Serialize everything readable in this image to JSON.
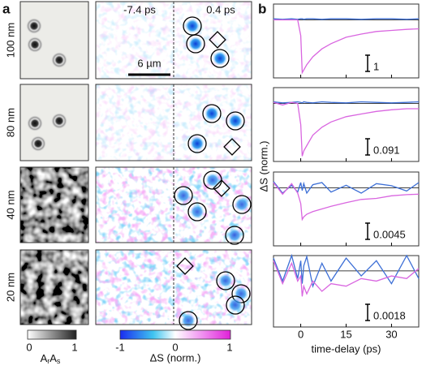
{
  "figure": {
    "panel_a": {
      "label": "a",
      "rows": [
        "100 nm",
        "80 nm",
        "40 nm",
        "20 nm"
      ],
      "time_labels": [
        "-7.4 ps",
        "0.4 ps"
      ],
      "scale_bar": "6 µm",
      "gray_colorbar": {
        "ticks": [
          "0",
          "1"
        ],
        "title": {
          "base1": "A",
          "sub1": "r",
          "base2": "A",
          "sub2": "s"
        }
      },
      "ds_colorbar": {
        "ticks": [
          "-1",
          "0",
          "1"
        ],
        "title": "ΔS (norm.)"
      }
    },
    "panel_b": {
      "label": "b",
      "y_label": "ΔS (norm.)",
      "x_label": "time-delay (ps)",
      "xlim": [
        -9,
        39
      ],
      "xticks": [
        0,
        15,
        30
      ],
      "ylim": [
        -1.1,
        0.3
      ],
      "baseline": 0,
      "signal_color": "#d966e0",
      "reference_color": "#3d6fd6",
      "x": [
        -9,
        -6,
        -3,
        -1,
        0,
        0.5,
        1,
        2,
        4,
        7,
        10,
        15,
        20,
        25,
        30,
        35,
        39
      ],
      "plots": [
        {
          "scale": "1",
          "signal": [
            0,
            0,
            0,
            0,
            -0.3,
            -1.0,
            -0.95,
            -0.85,
            -0.7,
            -0.55,
            -0.45,
            -0.33,
            -0.27,
            -0.22,
            -0.2,
            -0.18,
            -0.17
          ],
          "reference": [
            0.02,
            0.01,
            0.02,
            0.01,
            0.02,
            0.02,
            0.01,
            0.02,
            0.02,
            0.01,
            0.02,
            0.02,
            0.01,
            0.02,
            0.02,
            0.01,
            0.02
          ]
        },
        {
          "scale": "0.091",
          "signal": [
            0.02,
            -0.03,
            0.02,
            0,
            -0.4,
            -1.0,
            -0.9,
            -0.8,
            -0.6,
            -0.45,
            -0.35,
            -0.25,
            -0.2,
            -0.15,
            -0.12,
            -0.1,
            -0.1
          ],
          "reference": [
            0.03,
            0.01,
            0.02,
            0.03,
            0.02,
            0.01,
            0.03,
            0.02,
            0.01,
            0.03,
            0.02,
            0.01,
            0.03,
            0.02,
            0.01,
            0.02,
            0.03
          ]
        },
        {
          "scale": "0.0045",
          "signal": [
            0.1,
            -0.12,
            0.08,
            -0.1,
            -0.3,
            -0.6,
            -0.55,
            -0.5,
            -0.45,
            -0.4,
            -0.35,
            -0.28,
            -0.22,
            -0.2,
            -0.15,
            -0.13,
            -0.12
          ],
          "reference": [
            0.12,
            -0.1,
            0.05,
            -0.08,
            0.1,
            -0.05,
            0.08,
            -0.1,
            0.06,
            0.1,
            -0.08,
            0.05,
            -0.1,
            0.08,
            0.04,
            -0.06,
            0.1
          ]
        },
        {
          "scale": "0.0018",
          "signal": [
            0.2,
            -0.25,
            0.15,
            -0.2,
            -0.1,
            -0.5,
            -0.3,
            -0.45,
            -0.2,
            -0.4,
            -0.25,
            -0.3,
            -0.15,
            -0.2,
            -0.1,
            -0.15,
            0.05
          ],
          "reference": [
            0.25,
            -0.2,
            0.3,
            -0.15,
            0.2,
            -0.25,
            0.1,
            0.28,
            -0.3,
            0.15,
            -0.2,
            0.25,
            -0.1,
            0.2,
            -0.25,
            0.3,
            -0.15
          ]
        }
      ]
    }
  }
}
